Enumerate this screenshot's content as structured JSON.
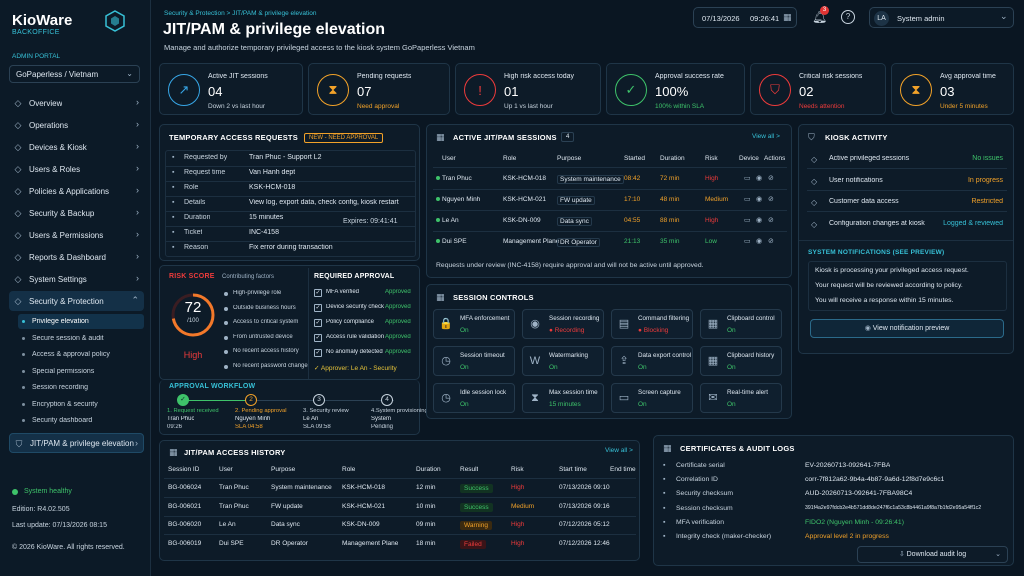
{
  "app": {
    "name": "KioWare",
    "subtitle": "BACKOFFICE",
    "portal_label": "ADMIN PORTAL",
    "portal_value": "GoPaperless / Vietnam"
  },
  "nav": [
    {
      "label": "Overview",
      "icon": "home-icon"
    },
    {
      "label": "Operations",
      "icon": "gear-icon"
    },
    {
      "label": "Devices & Kiosk",
      "icon": "device-icon"
    },
    {
      "label": "Users & Roles",
      "icon": "users-icon"
    },
    {
      "label": "Policies & Applications",
      "icon": "policy-icon"
    },
    {
      "label": "Security & Backup",
      "icon": "shield-icon"
    },
    {
      "label": "Users & Permissions",
      "icon": "user-key-icon"
    },
    {
      "label": "Reports & Dashboard",
      "icon": "chart-icon"
    },
    {
      "label": "System Settings",
      "icon": "sliders-icon"
    },
    {
      "label": "Security & Protection",
      "icon": "shield-lock-icon"
    }
  ],
  "subnav": [
    "Privilege elevation",
    "Secure session & audit",
    "Access & approval policy",
    "Special permissions",
    "Session recording",
    "Encryption & security",
    "Security dashboard"
  ],
  "nav_extra": "JIT/PAM & privilege elevation",
  "footer": {
    "health": "System healthy",
    "edition": "Edition: R4.02.505",
    "last_update": "Last update: 07/13/2026  08:15",
    "copyright": "© 2026 KioWare. All rights reserved."
  },
  "header": {
    "breadcrumb": "Security & Protection  >  JIT/PAM & privilege elevation",
    "title": "JIT/PAM & privilege elevation",
    "subtitle": "Manage and authorize temporary privileged access to the kiosk system GoPaperless Vietnam",
    "date": "07/13/2026",
    "time": "09:26:41",
    "notif_count": "3",
    "user_initials": "LA",
    "user_name": "System admin"
  },
  "kpis": [
    {
      "label": "Active JIT sessions",
      "value": "04",
      "sub": "Down 2 vs last hour",
      "color": "#37a6e6",
      "subcolor": "#c8d4df",
      "icon": "trend-icon",
      "glyph": "↗"
    },
    {
      "label": "Pending requests",
      "value": "07",
      "sub": "Need approval",
      "color": "#f2a229",
      "subcolor": "#f2a229",
      "icon": "hourglass-icon",
      "glyph": "⧗"
    },
    {
      "label": "High risk access today",
      "value": "01",
      "sub": "Up 1 vs last hour",
      "color": "#ee3b3b",
      "subcolor": "#c8d4df",
      "icon": "alert-icon",
      "glyph": "!"
    },
    {
      "label": "Approval success rate",
      "value": "100%",
      "sub": "100% within SLA",
      "color": "#3ec36a",
      "subcolor": "#3ec36a",
      "icon": "check-circle-icon",
      "glyph": "✓"
    },
    {
      "label": "Critical risk sessions",
      "value": "02",
      "sub": "Needs attention",
      "color": "#ee3b3b",
      "subcolor": "#ee3b3b",
      "icon": "shield-alert-icon",
      "glyph": "⛉"
    },
    {
      "label": "Avg approval time",
      "value": "03",
      "sub": "Under 5 minutes",
      "color": "#f2a229",
      "subcolor": "#f2a229",
      "icon": "hourglass-icon",
      "glyph": "⧗"
    }
  ],
  "request": {
    "title": "TEMPORARY ACCESS REQUESTS",
    "badge": "NEW - NEED APPROVAL",
    "rows": [
      {
        "k": "Requested by",
        "v": "Tran Phuc - Support L2"
      },
      {
        "k": "Request time",
        "v": "Van Hanh dept"
      },
      {
        "k": "Role",
        "v": "KSK-HCM-018"
      },
      {
        "k": "Details",
        "v": "View log, export data, check config, kiosk restart"
      },
      {
        "k": "Duration",
        "v": "15 minutes"
      },
      {
        "k": "Ticket",
        "v": "INC-4158"
      },
      {
        "k": "Reason",
        "v": "Fix error during transaction"
      }
    ],
    "expires": "Expires: 09:41:41"
  },
  "risk": {
    "title": "RISK SCORE",
    "factors_title": "Contributing factors",
    "score": "72",
    "max": "/100",
    "level": "High",
    "factors": [
      "High-privilege role",
      "Outside business hours",
      "Access to critical system",
      "From untrusted device",
      "No recent access history",
      "No recent password change"
    ]
  },
  "approval": {
    "title": "REQUIRED APPROVAL",
    "items": [
      {
        "k": "MFA verified",
        "v": "Approved"
      },
      {
        "k": "Device security check",
        "v": "Approved"
      },
      {
        "k": "Policy compliance",
        "v": "Approved"
      },
      {
        "k": "Access rule validation",
        "v": "Approved"
      },
      {
        "k": "No anomaly detected",
        "v": "Approved"
      }
    ],
    "approver": "Approver: Le An - Security"
  },
  "workflow": {
    "title": "APPROVAL WORKFLOW",
    "steps": [
      {
        "n": "✓",
        "t": "1. Request received",
        "a": "Tran Phuc",
        "b": "09:26"
      },
      {
        "n": "2",
        "t": "2. Pending approval",
        "a": "Nguyen Minh",
        "b": "SLA 04:58"
      },
      {
        "n": "3",
        "t": "3. Security review",
        "a": "Le An",
        "b": "SLA 09:58"
      },
      {
        "n": "4",
        "t": "4.System provisioning",
        "a": "System",
        "b": "Pending"
      }
    ]
  },
  "sessions": {
    "title": "ACTIVE JIT/PAM SESSIONS",
    "count": "4",
    "view_all": "View all  >",
    "headers": [
      "User",
      "Role",
      "Purpose",
      "Started",
      "Duration",
      "Risk",
      "Device",
      "Actions"
    ],
    "rows": [
      {
        "user": "Tran Phuc",
        "role": "KSK-HCM-018",
        "purpose": "System maintenance",
        "started": "08:42",
        "duration": "72 min",
        "risk": "High"
      },
      {
        "user": "Nguyen Minh",
        "role": "KSK-HCM-021",
        "purpose": "FW update",
        "started": "17:10",
        "duration": "48 min",
        "risk": "Medium"
      },
      {
        "user": "Le An",
        "role": "KSK-DN-009",
        "purpose": "Data sync",
        "started": "04:55",
        "duration": "88 min",
        "risk": "High"
      },
      {
        "user": "Dui SPE",
        "role": "Management Plane",
        "purpose": "DR Operator",
        "started": "21:13",
        "duration": "35 min",
        "risk": "Low"
      }
    ],
    "note": "Requests under review (INC-4158) require approval and will not be active until approved."
  },
  "controls": {
    "title": "SESSION CONTROLS",
    "items": [
      {
        "l": "MFA enforcement",
        "v": "On",
        "c": "#3ec36a",
        "g": "🔒"
      },
      {
        "l": "Session recording",
        "v": "● Recording",
        "c": "#ee3b3b",
        "g": "◉"
      },
      {
        "l": "Command filtering",
        "v": "● Blocking",
        "c": "#ee3b3b",
        "g": "▤"
      },
      {
        "l": "Clipboard control",
        "v": "On",
        "c": "#3ec36a",
        "g": "▦"
      },
      {
        "l": "Session timeout",
        "v": "On",
        "c": "#3ec36a",
        "g": "◷"
      },
      {
        "l": "Watermarking",
        "v": "On",
        "c": "#3ec36a",
        "g": "W"
      },
      {
        "l": "Data export control",
        "v": "On",
        "c": "#3ec36a",
        "g": "⇪"
      },
      {
        "l": "Clipboard history",
        "v": "On",
        "c": "#3ec36a",
        "g": "▦"
      },
      {
        "l": "Idle session lock",
        "v": "On",
        "c": "#3ec36a",
        "g": "◷"
      },
      {
        "l": "Max session time",
        "v": "15 minutes",
        "c": "#3ec36a",
        "g": "⧗"
      },
      {
        "l": "Screen capture",
        "v": "On",
        "c": "#3ec36a",
        "g": "▭"
      },
      {
        "l": "Real-time alert",
        "v": "On",
        "c": "#3ec36a",
        "g": "✉"
      }
    ]
  },
  "kiosk": {
    "title": "KIOSK ACTIVITY",
    "items": [
      {
        "k": "Active privileged sessions",
        "v": "No issues",
        "c": "#3ec36a"
      },
      {
        "k": "User notifications",
        "v": "In progress",
        "c": "#f2a229"
      },
      {
        "k": "Customer data access",
        "v": "Restricted",
        "c": "#f2a229"
      },
      {
        "k": "Configuration changes at kiosk",
        "v": "Logged & reviewed",
        "c": "#37c0d6"
      }
    ],
    "notif_title": "SYSTEM NOTIFICATIONS (SEE PREVIEW)",
    "notif_lines": [
      "Kiosk is processing your privileged access request.",
      "Your request will be reviewed according to policy.",
      "You will receive a response within 15 minutes."
    ],
    "preview_btn": "View notification preview"
  },
  "history": {
    "title": "JIT/PAM ACCESS HISTORY",
    "view_all": "View all  >",
    "headers": [
      "Session ID",
      "User",
      "Purpose",
      "Role",
      "Duration",
      "Result",
      "Risk",
      "Start time",
      "End time"
    ],
    "rows": [
      {
        "id": "BG-006024",
        "user": "Tran Phuc",
        "purpose": "System maintenance",
        "role": "KSK-HCM-018",
        "dur": "12 min",
        "res": "Success",
        "risk": "High",
        "start": "07/13/2026  09:10",
        "end": ""
      },
      {
        "id": "BG-006021",
        "user": "Tran Phuc",
        "purpose": "FW update",
        "role": "KSK-HCM-021",
        "dur": "10 min",
        "res": "Success",
        "risk": "Medium",
        "start": "07/13/2026  09:16",
        "end": ""
      },
      {
        "id": "BG-006020",
        "user": "Le An",
        "purpose": "Data sync",
        "role": "KSK-DN-009",
        "dur": "09 min",
        "res": "Warning",
        "risk": "High",
        "start": "07/12/2026  05:12",
        "end": ""
      },
      {
        "id": "BG-006019",
        "user": "Dui SPE",
        "purpose": "DR Operator",
        "role": "Management Plane",
        "dur": "18 min",
        "res": "Failed",
        "risk": "High",
        "start": "07/12/2026  12:46",
        "end": ""
      }
    ]
  },
  "certs": {
    "title": "CERTIFICATES & AUDIT LOGS",
    "rows": [
      {
        "k": "Certificate serial",
        "v": "EV-20260713-092641-7FBA",
        "c": "#dfe8f1"
      },
      {
        "k": "Correlation ID",
        "v": "corr-7f812a62-9b4a-4b87-9a6d-12f8d7e9c6c1",
        "c": "#dfe8f1"
      },
      {
        "k": "Security checksum",
        "v": "AUD-20260713-092641-7FBA98C4",
        "c": "#dfe8f1"
      },
      {
        "k": "Session checksum",
        "v": "391f4a2e97fdcb2e4b571dd8de247f6c1a53c8b4461a9f8a7b1fd2e95a54ff1c2",
        "c": "#dfe8f1"
      },
      {
        "k": "MFA verification",
        "v": "FIDO2 (Nguyen Minh - 09:26:41)",
        "c": "#3ec36a"
      },
      {
        "k": "Integrity check (maker-checker)",
        "v": "Approval level 2 in progress",
        "c": "#f2a229"
      }
    ],
    "download": "Download audit log"
  }
}
